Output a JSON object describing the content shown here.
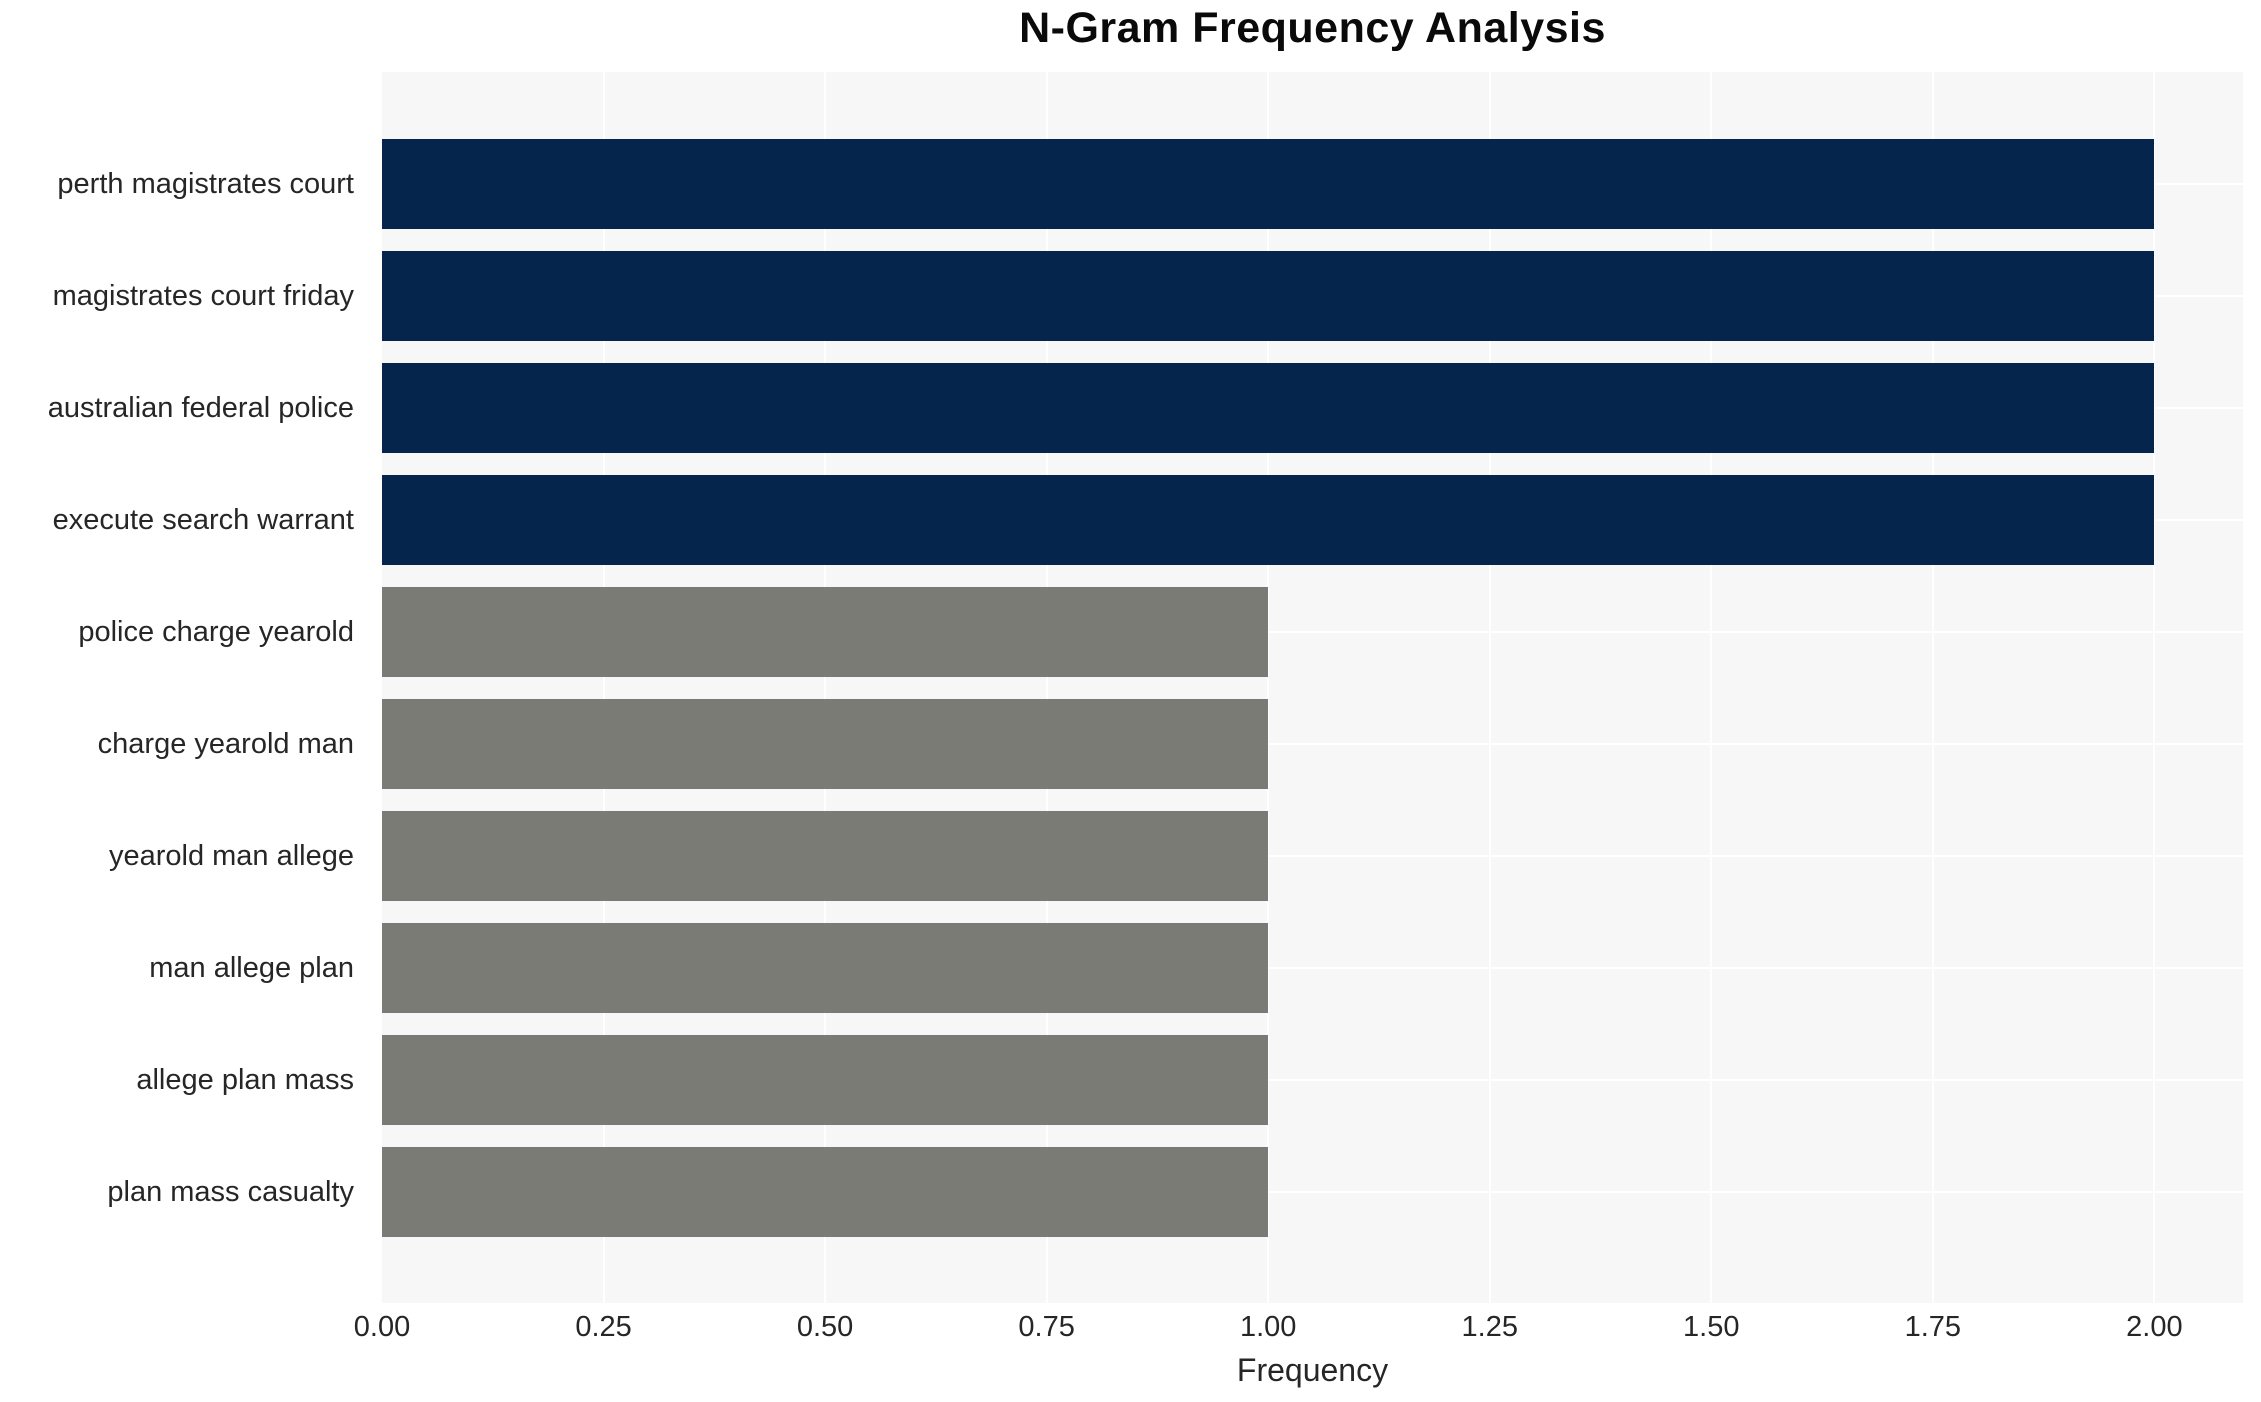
{
  "chart": {
    "title": "N-Gram Frequency Analysis",
    "xlabel": "Frequency"
  },
  "chart_data": {
    "type": "bar",
    "orientation": "horizontal",
    "title": "N-Gram Frequency Analysis",
    "xlabel": "Frequency",
    "ylabel": "",
    "categories": [
      "perth magistrates court",
      "magistrates court friday",
      "australian federal police",
      "execute search warrant",
      "police charge yearold",
      "charge yearold man",
      "yearold man allege",
      "man allege plan",
      "allege plan mass",
      "plan mass casualty"
    ],
    "values": [
      2,
      2,
      2,
      2,
      1,
      1,
      1,
      1,
      1,
      1
    ],
    "bar_colors": [
      "#05254c",
      "#05254c",
      "#05254c",
      "#05254c",
      "#7b7b76",
      "#7b7b76",
      "#7b7b76",
      "#7b7b76",
      "#7b7b76",
      "#7b7b76"
    ],
    "xlim": [
      0,
      2.1
    ],
    "x_tick_values": [
      0,
      0.25,
      0.5,
      0.75,
      1.0,
      1.25,
      1.5,
      1.75,
      2.0
    ],
    "x_tick_labels": [
      "0.00",
      "0.25",
      "0.50",
      "0.75",
      "1.00",
      "1.25",
      "1.50",
      "1.75",
      "2.00"
    ],
    "grid": true,
    "legend": false,
    "plot_background": "#f7f7f7",
    "gridline_color": "#ffffff"
  },
  "colors": {
    "accent_dark": "#05254c",
    "accent_gray": "#7b7b76",
    "text": "#262626",
    "title_text": "#0a0a0a",
    "plot_bg": "#f7f7f7",
    "page_bg": "#ffffff"
  }
}
